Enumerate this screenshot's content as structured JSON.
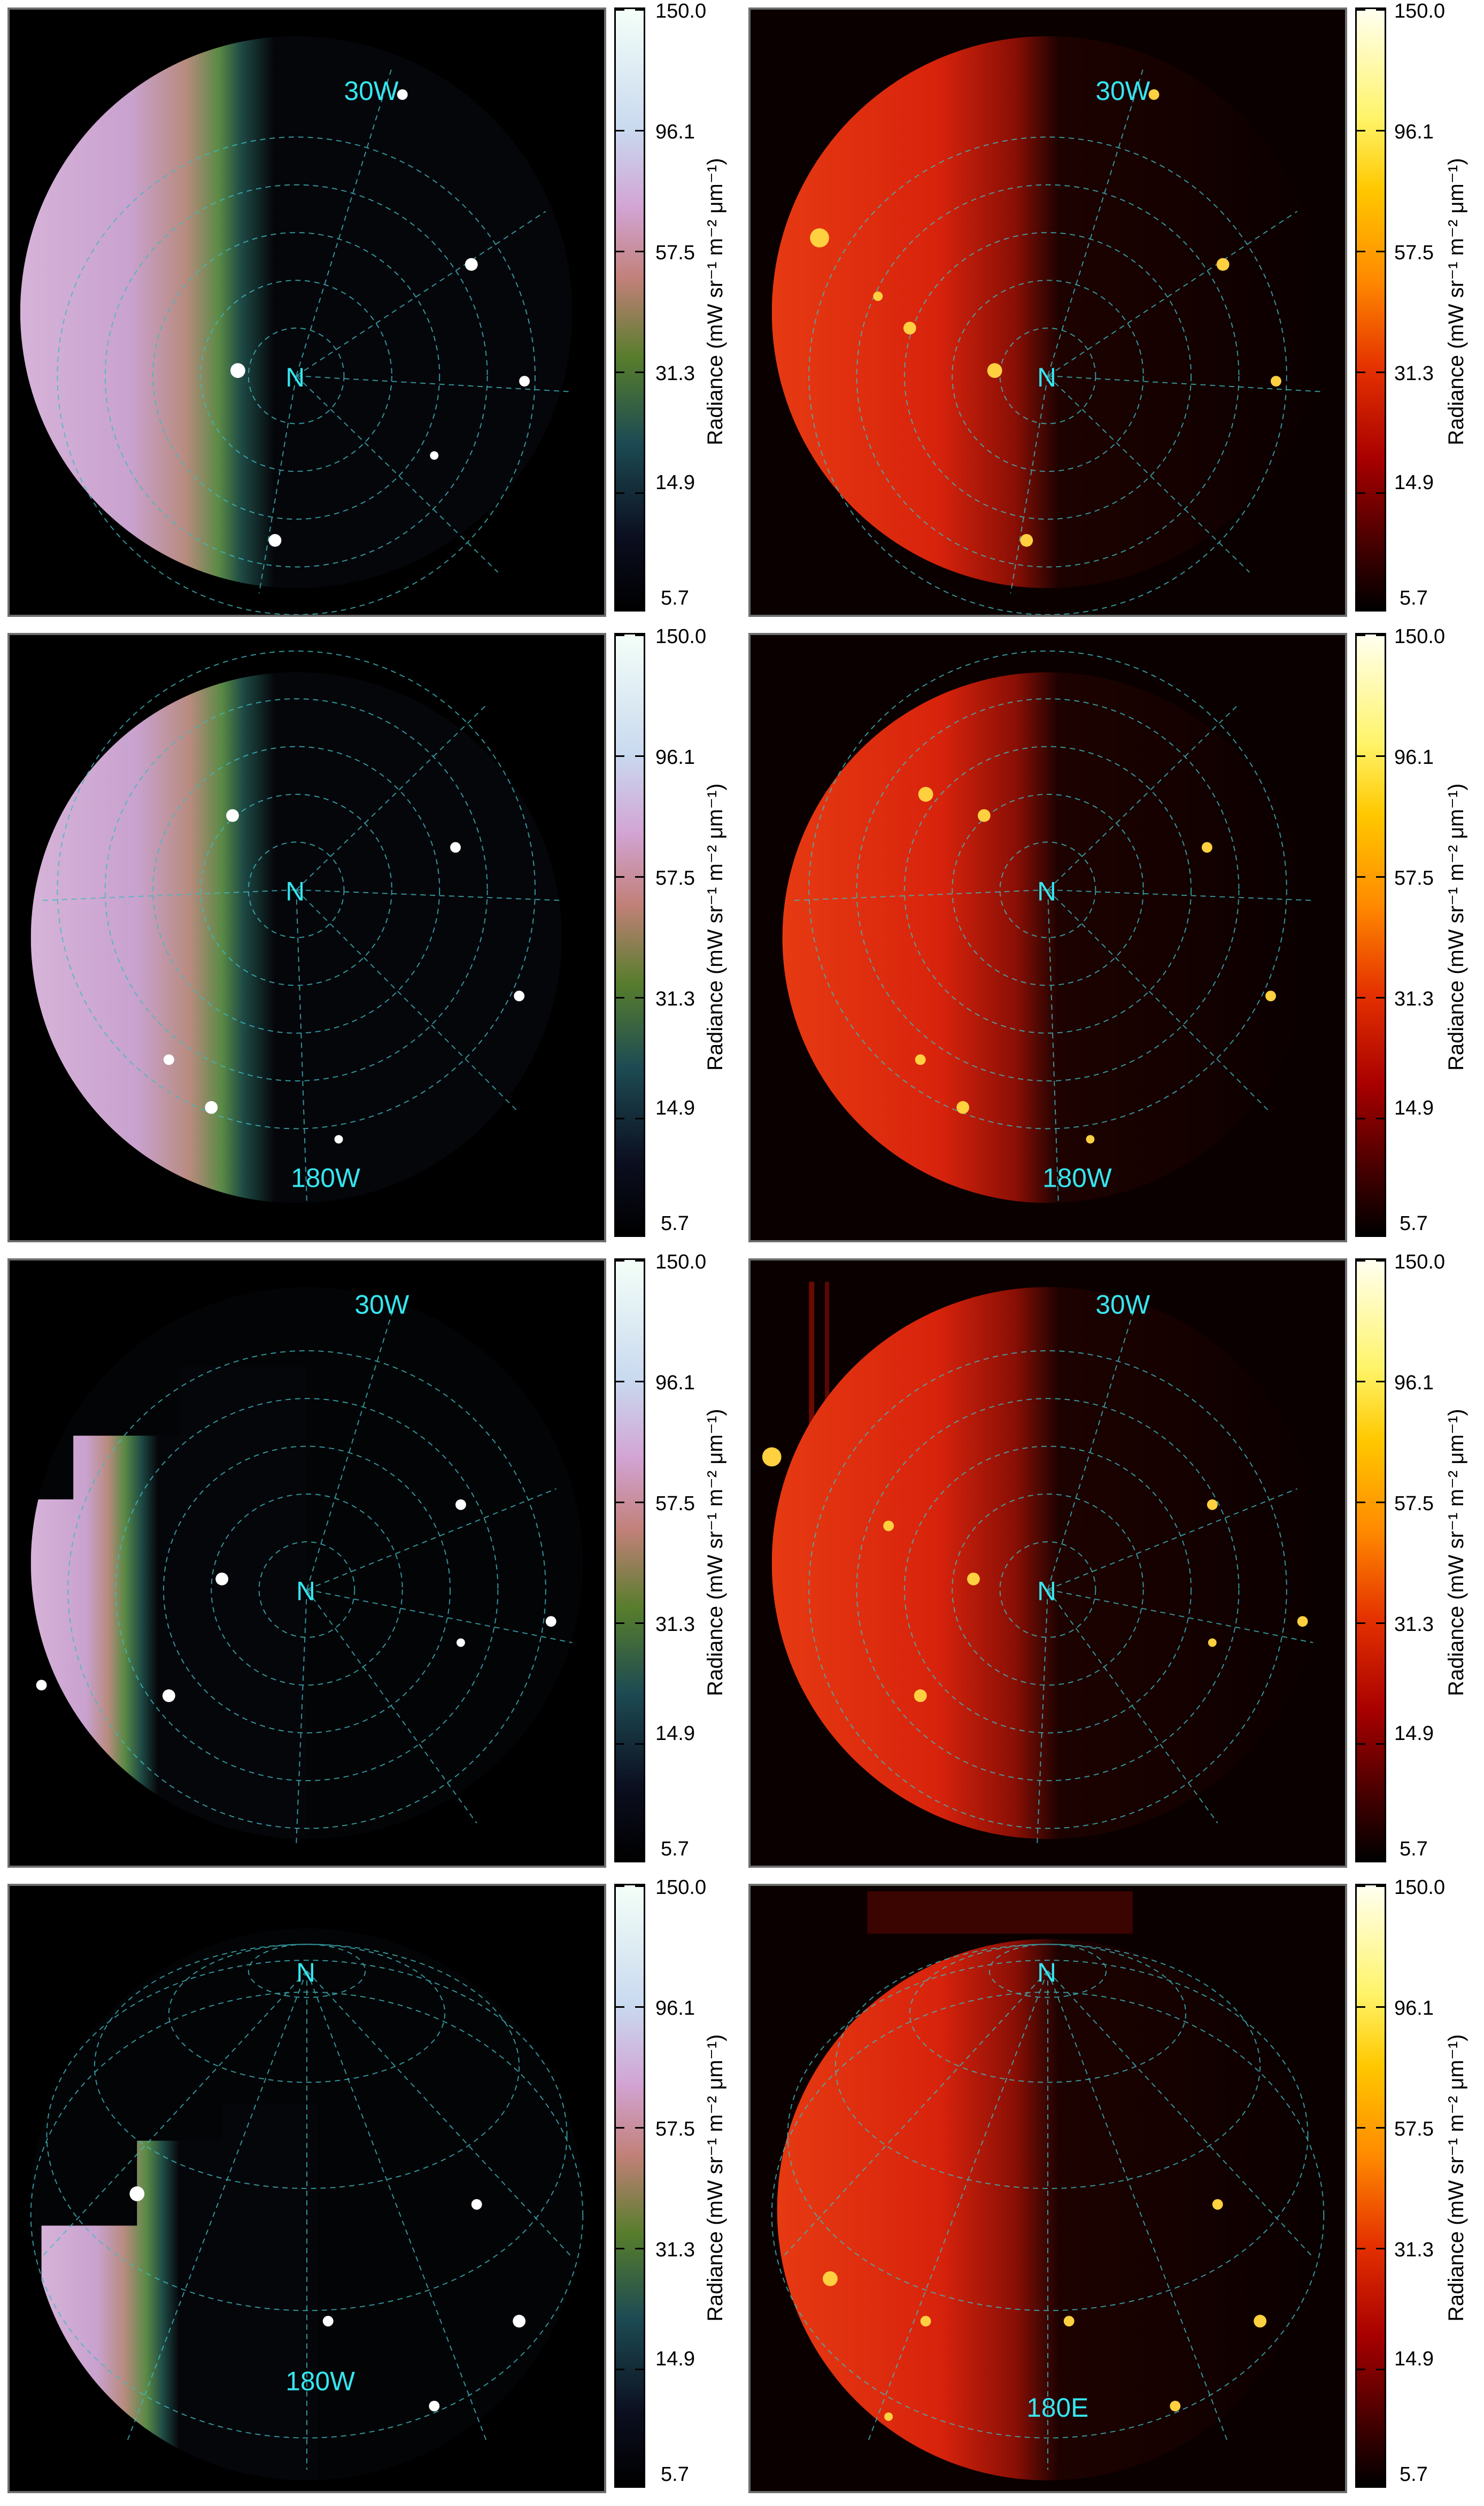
{
  "colorbar": {
    "ticks": [
      "150.0",
      "96.1",
      "57.5",
      "31.3",
      "14.9",
      "5.7"
    ],
    "units_label": "Radiance (mW sr⁻¹ m⁻² μm⁻¹)"
  },
  "colors": {
    "grid": "#3fb9c0",
    "label": "#35e6f0",
    "left_day": "#c9a2cf",
    "left_term": "#2f6a3c",
    "left_night": "#05060a",
    "right_day": "#e0250c",
    "right_term": "#7a0c04",
    "right_night": "#0a0000"
  },
  "panels": [
    {
      "row": 1,
      "style": "left",
      "pole_label": "N",
      "meridian_label": "30W"
    },
    {
      "row": 1,
      "style": "right",
      "pole_label": "N",
      "meridian_label": "30W"
    },
    {
      "row": 2,
      "style": "left",
      "pole_label": "N",
      "meridian_label": "180W"
    },
    {
      "row": 2,
      "style": "right",
      "pole_label": "N",
      "meridian_label": "180W"
    },
    {
      "row": 3,
      "style": "left",
      "pole_label": "N",
      "meridian_label": "30W"
    },
    {
      "row": 3,
      "style": "right",
      "pole_label": "N",
      "meridian_label": "30W"
    },
    {
      "row": 4,
      "style": "left",
      "pole_label": "N",
      "meridian_label": "180W"
    },
    {
      "row": 4,
      "style": "right",
      "pole_label": "N",
      "meridian_label": "180E"
    }
  ]
}
